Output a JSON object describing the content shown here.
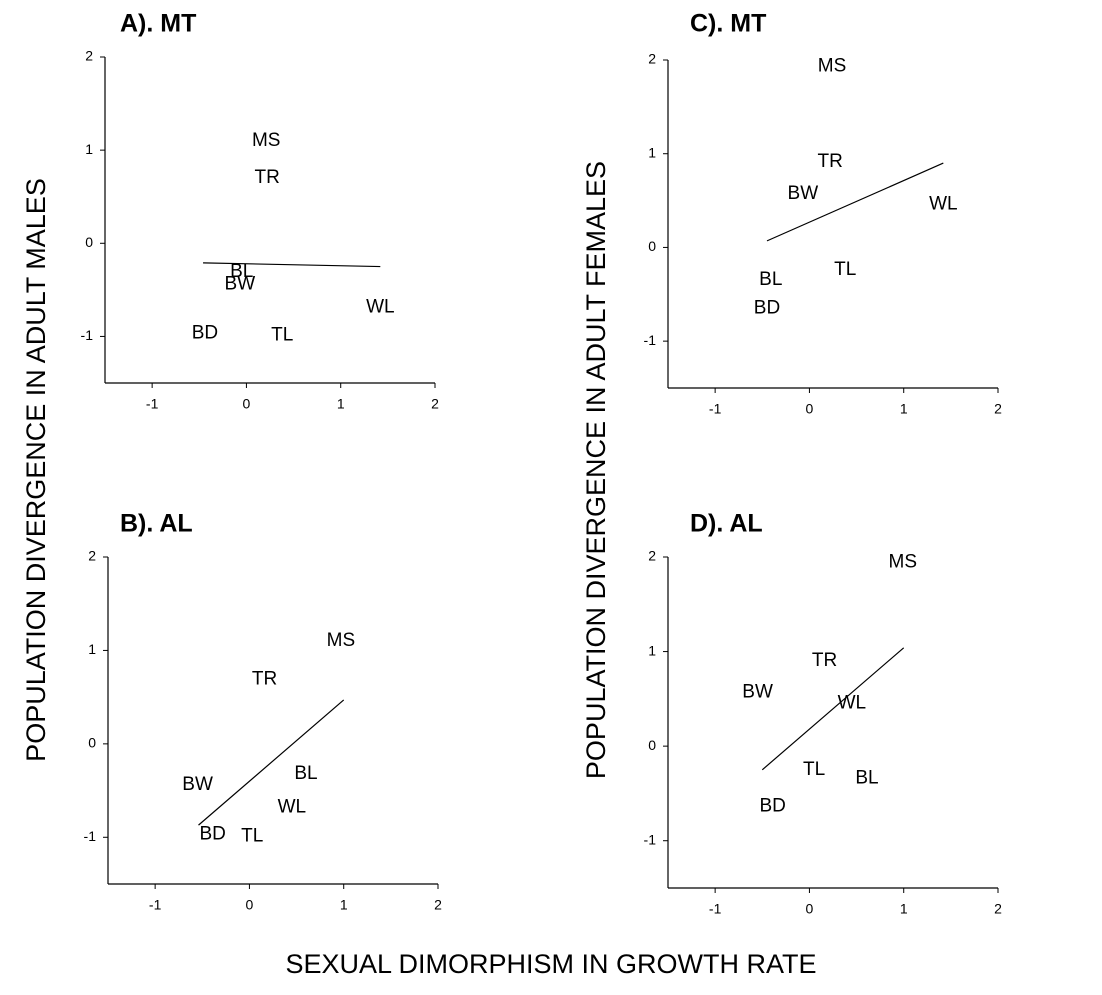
{
  "figure": {
    "ylabel_left": "POPULATION DIVERGENCE IN  ADULT MALES",
    "ylabel_right": "POPULATION DIVERGENCE IN  ADULT FEMALES",
    "xlabel": "SEXUAL DIMORPHISM IN GROWTH RATE"
  },
  "chart_data": [
    {
      "type": "scatter",
      "title": "A). MT",
      "color": "#000000",
      "labels": [
        "MS",
        "TR",
        "BL",
        "BW",
        "WL",
        "BD",
        "TL"
      ],
      "x": [
        0.21,
        0.22,
        -0.05,
        -0.07,
        1.42,
        -0.44,
        0.38
      ],
      "y": [
        1.1,
        0.7,
        -0.31,
        -0.44,
        -0.69,
        -0.97,
        -0.99
      ],
      "fit_line": {
        "x": [
          -0.46,
          1.42
        ],
        "y": [
          -0.21,
          -0.25
        ]
      },
      "xlim": [
        -1.5,
        2
      ],
      "ylim": [
        -1.5,
        2
      ],
      "xticks": [
        -1,
        0,
        1,
        2
      ],
      "yticks": [
        -1,
        0,
        1,
        2
      ]
    },
    {
      "type": "scatter",
      "title": "C). MT",
      "color": "#000000",
      "labels": [
        "MS",
        "TR",
        "BW",
        "WL",
        "BL",
        "TL",
        "BD"
      ],
      "x": [
        0.24,
        0.22,
        -0.07,
        1.42,
        -0.41,
        0.38,
        -0.45
      ],
      "y": [
        1.93,
        0.91,
        0.57,
        0.46,
        -0.35,
        -0.24,
        -0.65
      ],
      "fit_line": {
        "x": [
          -0.45,
          1.42
        ],
        "y": [
          0.07,
          0.9
        ]
      },
      "xlim": [
        -1.5,
        2
      ],
      "ylim": [
        -1.5,
        2
      ],
      "xticks": [
        -1,
        0,
        1,
        2
      ],
      "yticks": [
        -1,
        0,
        1,
        2
      ]
    },
    {
      "type": "scatter",
      "title": "B). AL",
      "color": "#000000",
      "labels": [
        "MS",
        "TR",
        "BW",
        "BL",
        "WL",
        "BD",
        "TL"
      ],
      "x": [
        0.97,
        0.16,
        -0.55,
        0.6,
        0.45,
        -0.39,
        0.03
      ],
      "y": [
        1.1,
        0.69,
        -0.44,
        -0.32,
        -0.68,
        -0.97,
        -0.99
      ],
      "fit_line": {
        "x": [
          -0.54,
          1.0
        ],
        "y": [
          -0.87,
          0.47
        ]
      },
      "xlim": [
        -1.5,
        2
      ],
      "ylim": [
        -1.5,
        2
      ],
      "xticks": [
        -1,
        0,
        1,
        2
      ],
      "yticks": [
        -1,
        0,
        1,
        2
      ]
    },
    {
      "type": "scatter",
      "title": "D). AL",
      "color": "#000000",
      "labels": [
        "MS",
        "TR",
        "BW",
        "WL",
        "TL",
        "BL",
        "BD"
      ],
      "x": [
        0.99,
        0.16,
        -0.55,
        0.45,
        0.05,
        0.61,
        -0.39
      ],
      "y": [
        1.94,
        0.9,
        0.57,
        0.45,
        -0.25,
        -0.34,
        -0.64
      ],
      "fit_line": {
        "x": [
          -0.5,
          1.0
        ],
        "y": [
          -0.25,
          1.04
        ]
      },
      "xlim": [
        -1.5,
        2
      ],
      "ylim": [
        -1.5,
        2
      ],
      "xticks": [
        -1,
        0,
        1,
        2
      ],
      "yticks": [
        -1,
        0,
        1,
        2
      ]
    }
  ]
}
